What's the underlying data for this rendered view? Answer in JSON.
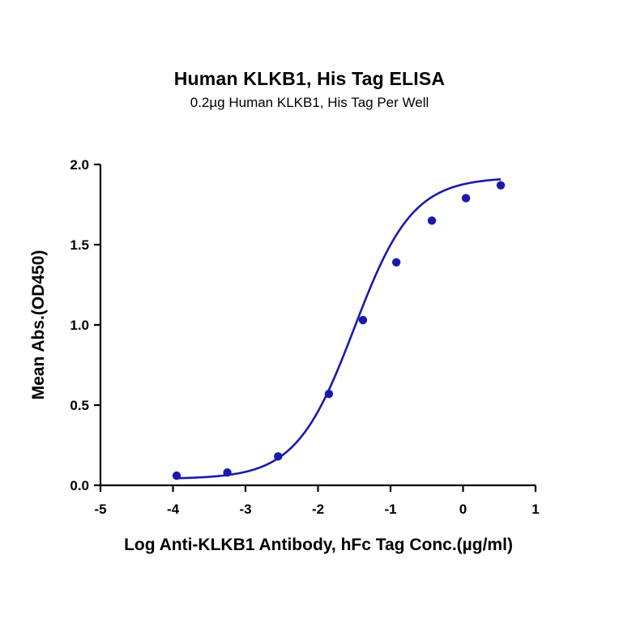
{
  "chart_data": {
    "type": "scatter",
    "title": "Human KLKB1, His Tag ELISA",
    "subtitle": "0.2µg Human KLKB1, His Tag Per Well",
    "xlabel": "Log Anti-KLKB1 Antibody, hFc Tag Conc.(µg/ml)",
    "ylabel": "Mean Abs.(OD450)",
    "xlim": [
      -5,
      1
    ],
    "ylim": [
      0,
      2.0
    ],
    "x_ticks": [
      -5,
      -4,
      -3,
      -2,
      -1,
      0,
      1
    ],
    "y_ticks": [
      0.0,
      0.5,
      1.0,
      1.5,
      2.0
    ],
    "x_tick_labels": [
      "-5",
      "-4",
      "-3",
      "-2",
      "-1",
      "0",
      "1"
    ],
    "y_tick_labels": [
      "0.0",
      "0.5",
      "1.0",
      "1.5",
      "2.0"
    ],
    "grid": false,
    "series": [
      {
        "x": [
          -3.95,
          -3.25,
          -2.55,
          -1.85,
          -1.38,
          -0.92,
          -0.43,
          0.04,
          0.52
        ],
        "y": [
          0.06,
          0.08,
          0.18,
          0.57,
          1.03,
          1.39,
          1.65,
          1.79,
          1.87
        ],
        "fit": "four-parameter-logistic",
        "color": "#1a1aaa"
      }
    ]
  }
}
